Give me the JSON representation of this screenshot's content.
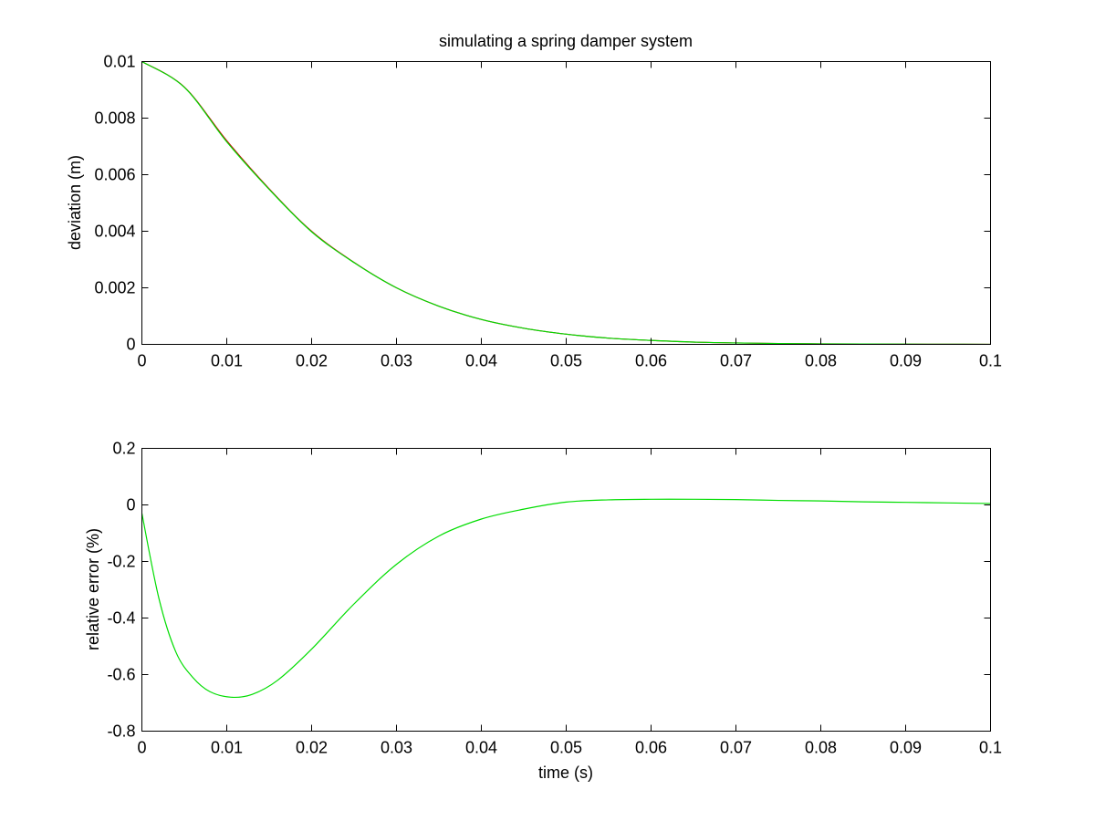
{
  "chart_data": [
    {
      "type": "line",
      "title": "simulating a spring damper system",
      "xlabel": "",
      "ylabel": "deviation (m)",
      "xlim": [
        0,
        0.1
      ],
      "ylim": [
        0,
        0.01
      ],
      "x_ticks": [
        "0",
        "0.01",
        "0.02",
        "0.03",
        "0.04",
        "0.05",
        "0.06",
        "0.07",
        "0.08",
        "0.09",
        "0.1"
      ],
      "y_ticks": [
        "0",
        "0.002",
        "0.004",
        "0.006",
        "0.008",
        "0.01"
      ],
      "grid": false,
      "series": [
        {
          "color": "#cc0000",
          "x": [
            0,
            0.005,
            0.01,
            0.015,
            0.02,
            0.025,
            0.03,
            0.035,
            0.04,
            0.045,
            0.05,
            0.055,
            0.06,
            0.065,
            0.07,
            0.075,
            0.08,
            0.085,
            0.09,
            0.095,
            0.1
          ],
          "values": [
            0.01,
            0.0091,
            0.0072,
            0.0055,
            0.004,
            0.0029,
            0.002,
            0.00135,
            0.00088,
            0.00057,
            0.00036,
            0.00022,
            0.00014,
            8e-05,
            5e-05,
            3e-05,
            1.8e-05,
            1.1e-05,
            7e-06,
            4e-06,
            2e-06
          ]
        },
        {
          "color": "#00dd00",
          "x": [
            0,
            0.005,
            0.01,
            0.015,
            0.02,
            0.025,
            0.03,
            0.035,
            0.04,
            0.045,
            0.05,
            0.055,
            0.06,
            0.065,
            0.07,
            0.075,
            0.08,
            0.085,
            0.09,
            0.095,
            0.1
          ],
          "values": [
            0.01,
            0.00909,
            0.00716,
            0.00548,
            0.00398,
            0.00289,
            0.002,
            0.00135,
            0.00088,
            0.00057,
            0.00036,
            0.00022,
            0.00014,
            8e-05,
            5e-05,
            3e-05,
            1.8e-05,
            1.1e-05,
            7e-06,
            4e-06,
            2e-06
          ]
        }
      ]
    },
    {
      "type": "line",
      "title": "",
      "xlabel": "time (s)",
      "ylabel": "relative error (%)",
      "xlim": [
        0,
        0.1
      ],
      "ylim": [
        -0.8,
        0.2
      ],
      "x_ticks": [
        "0",
        "0.01",
        "0.02",
        "0.03",
        "0.04",
        "0.05",
        "0.06",
        "0.07",
        "0.08",
        "0.09",
        "0.1"
      ],
      "y_ticks": [
        "-0.8",
        "-0.6",
        "-0.4",
        "-0.2",
        "0",
        "0.2"
      ],
      "grid": false,
      "series": [
        {
          "color": "#00dd00",
          "x": [
            0,
            0.002,
            0.004,
            0.006,
            0.008,
            0.0105,
            0.013,
            0.016,
            0.02,
            0.025,
            0.03,
            0.035,
            0.04,
            0.045,
            0.05,
            0.055,
            0.06,
            0.065,
            0.07,
            0.075,
            0.08,
            0.085,
            0.09,
            0.095,
            0.1
          ],
          "values": [
            -0.03,
            -0.33,
            -0.52,
            -0.61,
            -0.66,
            -0.68,
            -0.67,
            -0.62,
            -0.51,
            -0.35,
            -0.21,
            -0.11,
            -0.05,
            -0.015,
            0.01,
            0.018,
            0.02,
            0.02,
            0.019,
            0.016,
            0.014,
            0.011,
            0.009,
            0.007,
            0.005
          ]
        }
      ]
    }
  ]
}
